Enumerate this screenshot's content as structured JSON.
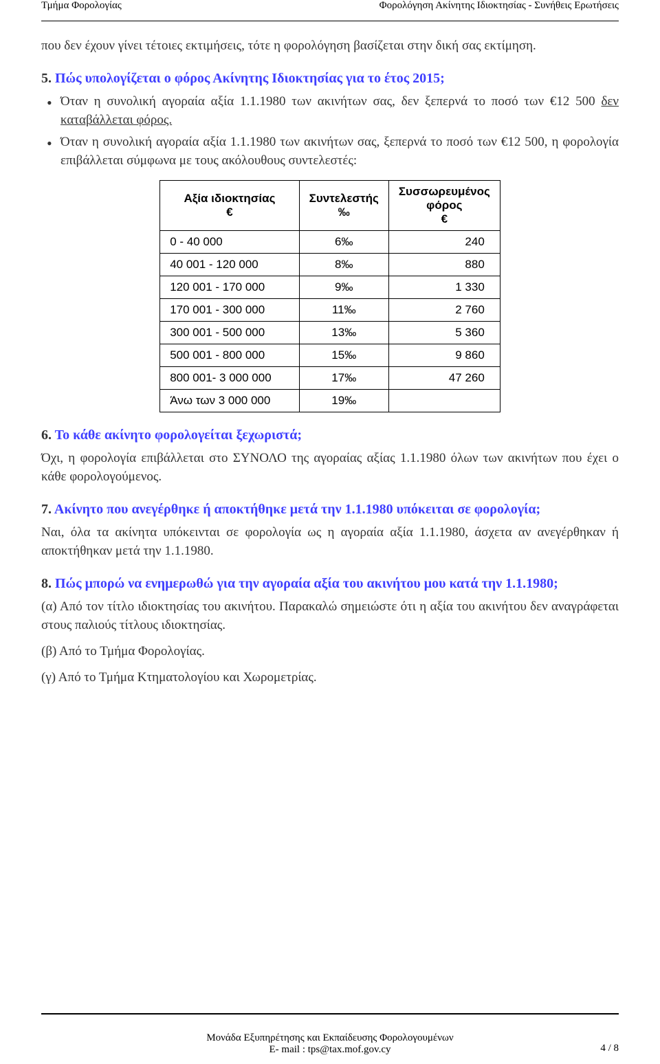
{
  "header": {
    "left": "Τμήμα Φορολογίας",
    "right": "Φορολόγηση Ακίνητης Ιδιοκτησίας -  Συνήθεις Ερωτήσεις"
  },
  "intro": "που δεν έχουν γίνει τέτοιες εκτιμήσεις, τότε  η φορολόγηση βασίζεται στην δική σας εκτίμηση.",
  "q5": {
    "num": "5.",
    "title": "Πώς υπολογίζεται ο φόρος Ακίνητης Ιδιοκτησίας για το έτος 2015;",
    "b1a": "Όταν η συνολική αγοραία αξία 1.1.1980 των ακινήτων σας, δεν ξεπερνά το ποσό των €12 500 ",
    "b1u": "δεν καταβάλλεται φόρος.",
    "b2": "Όταν η συνολική  αγοραία αξία 1.1.1980 των ακινήτων σας, ξεπερνά το ποσό των €12 500, η φορολογία επιβάλλεται σύμφωνα με τους ακόλουθους συντελεστές:"
  },
  "table": {
    "h1": "Αξία ιδιοκτησίας",
    "h1b": "€",
    "h2": "Συντελεστής",
    "h2b": "‰",
    "h3": "Συσσωρευμένος",
    "h3b": "φόρος",
    "h3c": "€",
    "rows": [
      {
        "a": "0   -  40 000",
        "b": "6‰",
        "c": "240"
      },
      {
        "a": "40 001  - 120 000",
        "b": "8‰",
        "c": "880"
      },
      {
        "a": "120 001  - 170 000",
        "b": "9‰",
        "c": "1 330"
      },
      {
        "a": "170 001  - 300 000",
        "b": "11‰",
        "c": "2 760"
      },
      {
        "a": "300 001  - 500 000",
        "b": "13‰",
        "c": "5 360"
      },
      {
        "a": "500 001  - 800 000",
        "b": "15‰",
        "c": "9 860"
      },
      {
        "a": "800 001- 3 000 000",
        "b": "17‰",
        "c": "47 260"
      },
      {
        "a": "Άνω των 3 000 000",
        "b": "19‰",
        "c": ""
      }
    ]
  },
  "q6": {
    "num": "6.",
    "title": "Το κάθε ακίνητο φορολογείται ξεχωριστά;",
    "body": "Όχι, η φορολογία επιβάλλεται στο ΣΥΝΟΛΟ της αγοραίας αξίας 1.1.1980 όλων των ακινήτων που έχει ο κάθε φορολογούμενος."
  },
  "q7": {
    "num": "7.",
    "title": "Ακίνητο που ανεγέρθηκε ή αποκτήθηκε μετά την 1.1.1980  υπόκειται σε φορολογία;",
    "body": "Ναι, όλα τα ακίνητα υπόκεινται σε φορολογία ως η αγοραία αξία 1.1.1980, άσχετα αν ανεγέρθηκαν ή  αποκτήθηκαν μετά την 1.1.1980."
  },
  "q8": {
    "num": "8.",
    "title": "Πώς μπορώ να ενημερωθώ για την αγοραία αξία του ακινήτου μου κατά την 1.1.1980;",
    "a": "(α) Από τον τίτλο ιδιοκτησίας του  ακινήτου. Παρακαλώ σημειώστε ότι η αξία του ακινήτου δεν αναγράφεται στους παλιούς τίτλους ιδιοκτησίας.",
    "b": "(β) Από το Τμήμα Φορολογίας.",
    "c": "(γ) Από το Τμήμα Κτηματολογίου και Χωρομετρίας."
  },
  "footer": {
    "line1": "Μονάδα Εξυπηρέτησης και Εκπαίδευσης Φορολογουμένων",
    "line2": "E- mail : tps@tax.mof.gov.cy",
    "page": "4 / 8"
  }
}
